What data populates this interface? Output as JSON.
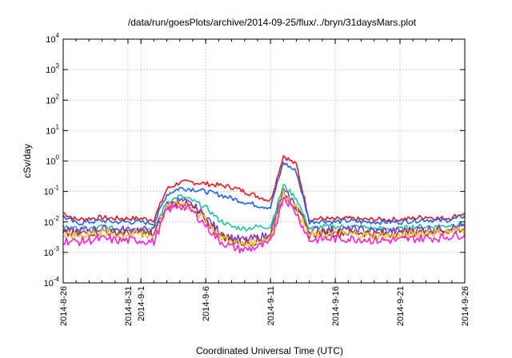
{
  "chart_data": {
    "type": "line",
    "title": "/data/run/goesPlots/archive/2014-09-25/flux/../bryn/31daysMars.plot",
    "xlabel": "Coordinated Universal Time (UTC)",
    "ylabel": "cSv/day",
    "yscale": "log",
    "ylim": [
      0.0001,
      10000
    ],
    "y_ticks": [
      {
        "value": 0.0001,
        "base": "10",
        "exp": "-4"
      },
      {
        "value": 0.001,
        "base": "10",
        "exp": "-3"
      },
      {
        "value": 0.01,
        "base": "10",
        "exp": "-2"
      },
      {
        "value": 0.1,
        "base": "10",
        "exp": "-1"
      },
      {
        "value": 1,
        "base": "10",
        "exp": "0"
      },
      {
        "value": 10,
        "base": "10",
        "exp": "1"
      },
      {
        "value": 100,
        "base": "10",
        "exp": "2"
      },
      {
        "value": 1000,
        "base": "10",
        "exp": "3"
      },
      {
        "value": 10000,
        "base": "10",
        "exp": "4"
      }
    ],
    "xlim": [
      "2014-08-26",
      "2014-09-26"
    ],
    "x_ticks": [
      {
        "date": "2014-08-26",
        "label": "2014-8-26"
      },
      {
        "date": "2014-08-31",
        "label": "2014-8-31"
      },
      {
        "date": "2014-09-01",
        "label": "2014-9-1"
      },
      {
        "date": "2014-09-06",
        "label": "2014-9-6"
      },
      {
        "date": "2014-09-11",
        "label": "2014-9-11"
      },
      {
        "date": "2014-09-16",
        "label": "2014-9-16"
      },
      {
        "date": "2014-09-21",
        "label": "2014-9-21"
      },
      {
        "date": "2014-09-26",
        "label": "2014-9-26"
      }
    ],
    "grid": true,
    "x": [
      "2014-08-26",
      "2014-08-27",
      "2014-08-28",
      "2014-08-29",
      "2014-08-30",
      "2014-08-31",
      "2014-09-01",
      "2014-09-02",
      "2014-09-03",
      "2014-09-04",
      "2014-09-05",
      "2014-09-06",
      "2014-09-07",
      "2014-09-08",
      "2014-09-09",
      "2014-09-10",
      "2014-09-11",
      "2014-09-12",
      "2014-09-13",
      "2014-09-14",
      "2014-09-15",
      "2014-09-16",
      "2014-09-17",
      "2014-09-18",
      "2014-09-19",
      "2014-09-20",
      "2014-09-21",
      "2014-09-22",
      "2014-09-23",
      "2014-09-24",
      "2014-09-25",
      "2014-09-26"
    ],
    "series": [
      {
        "color": "#e8161e",
        "values": [
          0.02,
          0.012,
          0.013,
          0.014,
          0.013,
          0.013,
          0.013,
          0.012,
          0.12,
          0.2,
          0.2,
          0.18,
          0.16,
          0.14,
          0.1,
          0.07,
          0.05,
          1.5,
          0.75,
          0.012,
          0.013,
          0.012,
          0.013,
          0.012,
          0.012,
          0.012,
          0.012,
          0.013,
          0.015,
          0.013,
          0.014,
          0.02
        ]
      },
      {
        "color": "#1e63e6",
        "values": [
          0.015,
          0.009,
          0.01,
          0.011,
          0.01,
          0.01,
          0.01,
          0.009,
          0.08,
          0.13,
          0.12,
          0.1,
          0.08,
          0.06,
          0.045,
          0.035,
          0.03,
          0.9,
          0.45,
          0.01,
          0.011,
          0.01,
          0.011,
          0.01,
          0.01,
          0.01,
          0.01,
          0.011,
          0.012,
          0.011,
          0.012,
          0.016
        ]
      },
      {
        "color": "#1fc49a",
        "values": [
          0.007,
          0.006,
          0.006,
          0.007,
          0.006,
          0.006,
          0.006,
          0.006,
          0.045,
          0.07,
          0.05,
          0.03,
          0.012,
          0.007,
          0.006,
          0.007,
          0.007,
          0.16,
          0.06,
          0.006,
          0.007,
          0.007,
          0.007,
          0.007,
          0.006,
          0.006,
          0.006,
          0.007,
          0.007,
          0.007,
          0.008,
          0.009
        ]
      },
      {
        "color": "#7a3fd1",
        "values": [
          0.005,
          0.005,
          0.0055,
          0.006,
          0.0055,
          0.0055,
          0.0055,
          0.005,
          0.035,
          0.05,
          0.035,
          0.015,
          0.005,
          0.003,
          0.0025,
          0.003,
          0.004,
          0.1,
          0.035,
          0.005,
          0.0055,
          0.0055,
          0.0055,
          0.0055,
          0.005,
          0.005,
          0.005,
          0.0055,
          0.006,
          0.006,
          0.0065,
          0.007
        ]
      },
      {
        "color": "#a03c3c",
        "values": [
          0.004,
          0.004,
          0.0045,
          0.005,
          0.0045,
          0.0045,
          0.0045,
          0.004,
          0.03,
          0.045,
          0.03,
          0.012,
          0.004,
          0.0025,
          0.002,
          0.0025,
          0.0035,
          0.09,
          0.03,
          0.004,
          0.0045,
          0.0045,
          0.0045,
          0.0045,
          0.004,
          0.004,
          0.004,
          0.0045,
          0.005,
          0.005,
          0.0055,
          0.006
        ]
      },
      {
        "color": "#f1c232",
        "values": [
          0.0035,
          0.0035,
          0.004,
          0.0045,
          0.004,
          0.004,
          0.004,
          0.0035,
          0.028,
          0.042,
          0.028,
          0.011,
          0.0035,
          0.0022,
          0.0018,
          0.0022,
          0.003,
          0.085,
          0.028,
          0.0035,
          0.004,
          0.004,
          0.004,
          0.004,
          0.0035,
          0.0035,
          0.0035,
          0.004,
          0.0045,
          0.0045,
          0.005,
          0.0055
        ]
      },
      {
        "color": "#ff1ee1",
        "values": [
          0.0025,
          0.0022,
          0.0025,
          0.0028,
          0.0025,
          0.0025,
          0.0025,
          0.0022,
          0.025,
          0.035,
          0.022,
          0.008,
          0.0025,
          0.0015,
          0.0012,
          0.0015,
          0.002,
          0.07,
          0.02,
          0.0025,
          0.0028,
          0.0028,
          0.0028,
          0.0028,
          0.0025,
          0.0025,
          0.0025,
          0.0028,
          0.003,
          0.003,
          0.0035,
          0.004
        ]
      }
    ]
  }
}
